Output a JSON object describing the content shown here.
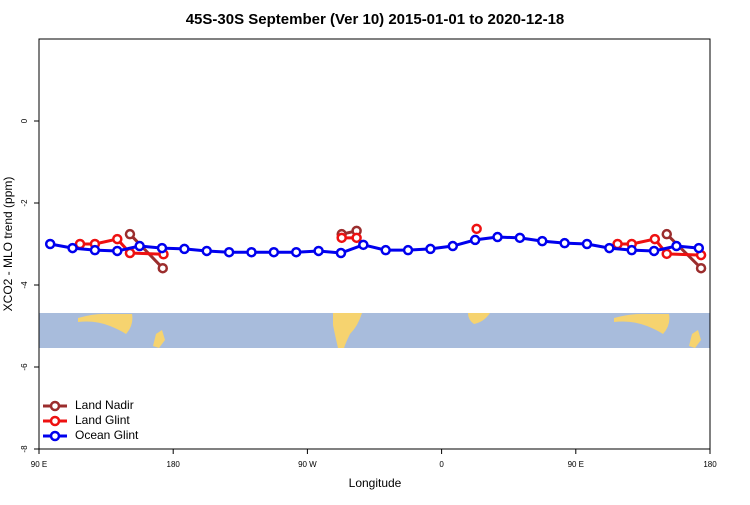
{
  "chart_data": {
    "type": "line",
    "title": "45S-30S September (Ver 10)   2015-01-01 to 2020-12-18",
    "x_label": "Longitude",
    "y_label": "XCO2 - MLO trend (ppm)",
    "xlim": [
      90,
      540
    ],
    "xticks": [
      {
        "value": 90,
        "label": "90 E"
      },
      180,
      {
        "value": 270,
        "label": "90 W"
      },
      {
        "value": 360,
        "label": "0"
      },
      {
        "value": 450,
        "label": "90 E"
      },
      {
        "value": 540,
        "label": "180"
      }
    ],
    "ylim": [
      -8,
      2
    ],
    "yticks": [
      0,
      -2,
      -4,
      -6,
      -8
    ],
    "legend": "bottom-left",
    "series": [
      {
        "name": "Land Nadir",
        "color": "#9b2d2d",
        "x": [
          151,
          173,
          null,
          293,
          303,
          null,
          511,
          534
        ],
        "values": [
          -2.76,
          -3.59,
          null,
          -2.76,
          -2.68,
          null,
          -2.76,
          -3.59
        ]
      },
      {
        "name": "Land Glint",
        "color": "#ee1111",
        "x": [
          117.5,
          127.5,
          142.5,
          151,
          173.5,
          null,
          293,
          303,
          null,
          383.5,
          null,
          478,
          487.5,
          503,
          511,
          534
        ],
        "values": [
          -3.0,
          -3.0,
          -2.88,
          -3.22,
          -3.25,
          null,
          -2.85,
          -2.85,
          null,
          -2.63,
          null,
          -3.0,
          -3.0,
          -2.88,
          -3.24,
          -3.27
        ]
      },
      {
        "name": "Ocean Glint",
        "color": "#0000ee",
        "x": [
          97.5,
          112.5,
          127.5,
          142.5,
          157.5,
          172.5,
          187.5,
          202.5,
          217.5,
          232.5,
          247.5,
          262.5,
          277.5,
          292.5,
          307.5,
          322.5,
          337.5,
          352.5,
          367.5,
          382.5,
          397.5,
          412.5,
          427.5,
          442.5,
          457.5,
          472.5,
          487.5,
          502.5,
          517.5,
          532.5
        ],
        "values": [
          -3.0,
          -3.1,
          -3.15,
          -3.17,
          -3.05,
          -3.1,
          -3.12,
          -3.17,
          -3.2,
          -3.2,
          -3.2,
          -3.2,
          -3.17,
          -3.22,
          -3.02,
          -3.15,
          -3.15,
          -3.12,
          -3.05,
          -2.9,
          -2.83,
          -2.85,
          -2.93,
          -2.98,
          -3.0,
          -3.1,
          -3.15,
          -3.17,
          -3.05,
          -3.1
        ]
      }
    ]
  }
}
